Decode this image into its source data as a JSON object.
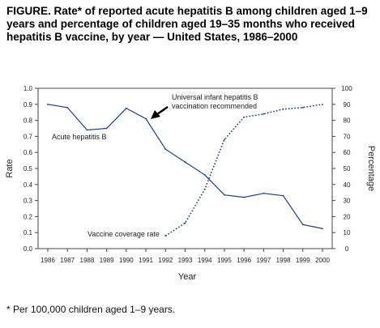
{
  "title": "FIGURE. Rate* of reported acute hepatitis B among children aged 1–9 years and percentage of children aged 19–35 months who received hepatitis B vaccine, by year — United States, 1986–2000",
  "footnote": "* Per 100,000 children aged 1–9 years.",
  "chart_data": {
    "type": "line",
    "xlabel": "Year",
    "ylabel_left": "Rate",
    "ylabel_right": "Percentage",
    "x": [
      "1986",
      "1987",
      "1988",
      "1989",
      "1990",
      "1991",
      "1992",
      "1993",
      "1994",
      "1995",
      "1996",
      "1997",
      "1998",
      "1999",
      "2000"
    ],
    "ylim_left": [
      0,
      1.0
    ],
    "ylim_right": [
      0,
      100
    ],
    "yticks_left": [
      "0.0",
      "0.1",
      "0.2",
      "0.3",
      "0.4",
      "0.5",
      "0.6",
      "0.7",
      "0.8",
      "0.9",
      "1.0"
    ],
    "yticks_right": [
      "0",
      "10",
      "20",
      "30",
      "40",
      "50",
      "60",
      "70",
      "80",
      "90",
      "100"
    ],
    "grid": false,
    "series": [
      {
        "name": "Acute hepatitis B",
        "axis": "left",
        "style": "solid",
        "color": "#1f3f7a",
        "x": [
          "1986",
          "1987",
          "1988",
          "1989",
          "1990",
          "1991",
          "1992",
          "1993",
          "1994",
          "1995",
          "1996",
          "1997",
          "1998",
          "1999",
          "2000"
        ],
        "values": [
          0.9,
          0.88,
          0.74,
          0.75,
          0.875,
          0.81,
          0.62,
          0.54,
          0.46,
          0.335,
          0.32,
          0.345,
          0.33,
          0.15,
          0.125
        ]
      },
      {
        "name": "Vaccine coverage rate",
        "axis": "right",
        "style": "dotted",
        "color": "#1f3f7a",
        "x": [
          "1992",
          "1993",
          "1994",
          "1995",
          "1996",
          "1997",
          "1998",
          "1999",
          "2000"
        ],
        "values": [
          8,
          16,
          37,
          68,
          82,
          84,
          87,
          88,
          90
        ]
      }
    ],
    "annotations": [
      {
        "text": "Universal infant hepatitis B",
        "line": 1
      },
      {
        "text": "vaccination recommended",
        "line": 2
      }
    ]
  }
}
